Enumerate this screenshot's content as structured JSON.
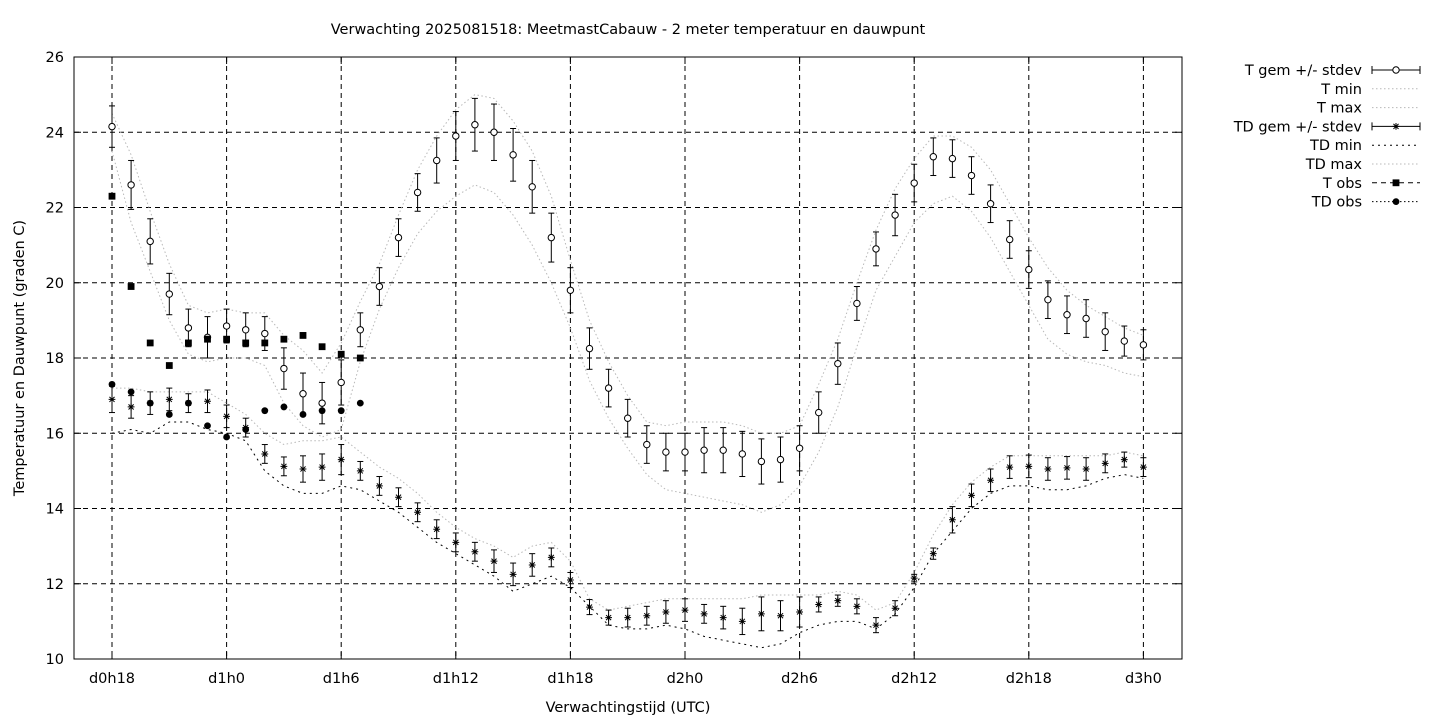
{
  "chart_data": {
    "type": "line",
    "title": "Verwachting 2025081518: MeetmastCabauw - 2 meter temperatuur en dauwpunt",
    "xlabel": "Verwachtingstijd (UTC)",
    "ylabel": "Temperatuur en Dauwpunt (graden C)",
    "xlim": [
      0,
      56
    ],
    "ylim": [
      10,
      26
    ],
    "x_ticks": [
      {
        "x": 0,
        "label": "d0h18"
      },
      {
        "x": 6,
        "label": "d1h0"
      },
      {
        "x": 12,
        "label": "d1h6"
      },
      {
        "x": 18,
        "label": "d1h12"
      },
      {
        "x": 24,
        "label": "d1h18"
      },
      {
        "x": 30,
        "label": "d2h0"
      },
      {
        "x": 36,
        "label": "d2h6"
      },
      {
        "x": 42,
        "label": "d2h12"
      },
      {
        "x": 48,
        "label": "d2h18"
      },
      {
        "x": 54,
        "label": "d3h0"
      }
    ],
    "y_ticks": [
      10,
      12,
      14,
      16,
      18,
      20,
      22,
      24,
      26
    ],
    "grid": true,
    "legend_position": "top-right, outside plot",
    "legend": [
      "T gem +/- stdev",
      "T min",
      "T max",
      "TD gem +/- stdev",
      "TD min",
      "TD max",
      "T obs",
      "TD obs"
    ],
    "series": [
      {
        "name": "T gem +/- stdev",
        "kind": "errorbar",
        "marker": "open-circle",
        "x": [
          0,
          1,
          2,
          3,
          4,
          5,
          6,
          7,
          8,
          9,
          10,
          11,
          12,
          13,
          14,
          15,
          16,
          17,
          18,
          19,
          20,
          21,
          22,
          23,
          24,
          25,
          26,
          27,
          28,
          29,
          30,
          31,
          32,
          33,
          34,
          35,
          36,
          37,
          38,
          39,
          40,
          41,
          42,
          43,
          44,
          45,
          46,
          47,
          48,
          49,
          50,
          51,
          52,
          53,
          54
        ],
        "y": [
          24.15,
          22.6,
          21.1,
          19.7,
          18.8,
          18.55,
          18.85,
          18.75,
          18.65,
          17.72,
          17.05,
          16.8,
          17.35,
          18.75,
          19.9,
          21.2,
          22.4,
          23.25,
          23.9,
          24.2,
          24.0,
          23.4,
          22.55,
          21.2,
          19.8,
          18.25,
          17.2,
          16.4,
          15.7,
          15.5,
          15.5,
          15.55,
          15.55,
          15.45,
          15.25,
          15.3,
          15.6,
          16.55,
          17.85,
          19.45,
          20.9,
          21.8,
          22.65,
          23.35,
          23.3,
          22.85,
          22.1,
          21.15,
          20.35,
          19.55,
          19.15,
          19.05,
          18.7,
          18.45,
          18.35
        ],
        "stdev": [
          0.55,
          0.65,
          0.6,
          0.55,
          0.5,
          0.55,
          0.45,
          0.45,
          0.45,
          0.55,
          0.55,
          0.55,
          0.6,
          0.45,
          0.5,
          0.5,
          0.5,
          0.6,
          0.65,
          0.7,
          0.75,
          0.7,
          0.7,
          0.65,
          0.6,
          0.55,
          0.5,
          0.5,
          0.5,
          0.5,
          0.5,
          0.6,
          0.6,
          0.6,
          0.6,
          0.6,
          0.6,
          0.55,
          0.55,
          0.45,
          0.45,
          0.55,
          0.5,
          0.5,
          0.5,
          0.5,
          0.5,
          0.5,
          0.5,
          0.5,
          0.5,
          0.5,
          0.5,
          0.4,
          0.4
        ]
      },
      {
        "name": "T min",
        "kind": "line",
        "x": [
          0,
          1,
          2,
          3,
          4,
          5,
          6,
          7,
          8,
          9,
          10,
          11,
          12,
          13,
          14,
          15,
          16,
          17,
          18,
          19,
          20,
          21,
          22,
          23,
          24,
          25,
          26,
          27,
          28,
          29,
          30,
          31,
          32,
          33,
          34,
          35,
          36,
          37,
          38,
          39,
          40,
          41,
          42,
          43,
          44,
          45,
          46,
          47,
          48,
          49,
          50,
          51,
          52,
          53,
          54
        ],
        "y": [
          23.5,
          21.6,
          20.3,
          19.0,
          18.1,
          17.9,
          18.0,
          18.0,
          17.8,
          16.8,
          16.2,
          15.9,
          16.1,
          17.9,
          19.3,
          20.4,
          21.3,
          21.9,
          22.3,
          22.6,
          22.4,
          21.8,
          21.0,
          20.0,
          18.8,
          17.4,
          16.4,
          15.6,
          14.9,
          14.5,
          14.4,
          14.3,
          14.2,
          14.1,
          13.9,
          14.1,
          14.6,
          15.5,
          16.7,
          18.3,
          19.8,
          20.7,
          21.6,
          22.1,
          22.3,
          21.9,
          21.2,
          20.3,
          19.4,
          18.5,
          18.1,
          17.9,
          17.8,
          17.6,
          17.5
        ]
      },
      {
        "name": "T max",
        "kind": "line",
        "x": [
          0,
          1,
          2,
          3,
          4,
          5,
          6,
          7,
          8,
          9,
          10,
          11,
          12,
          13,
          14,
          15,
          16,
          17,
          18,
          19,
          20,
          21,
          22,
          23,
          24,
          25,
          26,
          27,
          28,
          29,
          30,
          31,
          32,
          33,
          34,
          35,
          36,
          37,
          38,
          39,
          40,
          41,
          42,
          43,
          44,
          45,
          46,
          47,
          48,
          49,
          50,
          51,
          52,
          53,
          54
        ],
        "y": [
          24.5,
          23.4,
          21.9,
          20.5,
          19.4,
          19.2,
          19.3,
          19.2,
          19.2,
          18.6,
          18.2,
          17.6,
          18.4,
          19.5,
          20.5,
          21.8,
          23.0,
          23.9,
          24.6,
          25.0,
          24.9,
          24.3,
          23.5,
          22.3,
          20.6,
          19.0,
          17.9,
          17.0,
          16.3,
          16.2,
          16.3,
          16.3,
          16.3,
          16.2,
          16.0,
          16.0,
          16.2,
          17.3,
          18.5,
          20.0,
          21.4,
          22.5,
          23.3,
          23.9,
          23.9,
          23.6,
          23.0,
          22.1,
          21.2,
          20.4,
          19.8,
          19.4,
          19.1,
          18.8,
          18.6
        ]
      },
      {
        "name": "TD gem +/- stdev",
        "kind": "errorbar",
        "marker": "asterisk",
        "x": [
          0,
          1,
          2,
          3,
          4,
          5,
          6,
          7,
          8,
          9,
          10,
          11,
          12,
          13,
          14,
          15,
          16,
          17,
          18,
          19,
          20,
          21,
          22,
          23,
          24,
          25,
          26,
          27,
          28,
          29,
          30,
          31,
          32,
          33,
          34,
          35,
          36,
          37,
          38,
          39,
          40,
          41,
          42,
          43,
          44,
          45,
          46,
          47,
          48,
          49,
          50,
          51,
          52,
          53,
          54
        ],
        "y": [
          16.9,
          16.7,
          16.8,
          16.9,
          16.8,
          16.85,
          16.45,
          16.15,
          15.45,
          15.12,
          15.05,
          15.1,
          15.3,
          15.0,
          14.6,
          14.3,
          13.9,
          13.45,
          13.1,
          12.85,
          12.6,
          12.25,
          12.5,
          12.7,
          12.1,
          11.38,
          11.1,
          11.1,
          11.15,
          11.25,
          11.3,
          11.2,
          11.1,
          11.0,
          11.2,
          11.15,
          11.25,
          11.45,
          11.55,
          11.4,
          10.9,
          11.35,
          12.15,
          12.8,
          13.7,
          14.35,
          14.75,
          15.1,
          15.12,
          15.05,
          15.08,
          15.05,
          15.2,
          15.3,
          15.1
        ],
        "stdev": [
          0.35,
          0.3,
          0.3,
          0.3,
          0.25,
          0.3,
          0.3,
          0.25,
          0.25,
          0.25,
          0.35,
          0.35,
          0.4,
          0.25,
          0.25,
          0.25,
          0.25,
          0.25,
          0.25,
          0.25,
          0.3,
          0.3,
          0.3,
          0.25,
          0.2,
          0.2,
          0.2,
          0.25,
          0.25,
          0.3,
          0.3,
          0.25,
          0.3,
          0.35,
          0.45,
          0.4,
          0.4,
          0.2,
          0.15,
          0.2,
          0.2,
          0.2,
          0.1,
          0.15,
          0.35,
          0.3,
          0.3,
          0.3,
          0.3,
          0.3,
          0.3,
          0.3,
          0.25,
          0.2,
          0.25
        ]
      },
      {
        "name": "TD min",
        "kind": "line",
        "x": [
          0,
          1,
          2,
          3,
          4,
          5,
          6,
          7,
          8,
          9,
          10,
          11,
          12,
          13,
          14,
          15,
          16,
          17,
          18,
          19,
          20,
          21,
          22,
          23,
          24,
          25,
          26,
          27,
          28,
          29,
          30,
          31,
          32,
          33,
          34,
          35,
          36,
          37,
          38,
          39,
          40,
          41,
          42,
          43,
          44,
          45,
          46,
          47,
          48,
          49,
          50,
          51,
          52,
          53,
          54
        ],
        "y": [
          16.0,
          16.1,
          16.0,
          16.3,
          16.3,
          16.1,
          16.0,
          15.8,
          15.0,
          14.6,
          14.4,
          14.4,
          14.6,
          14.5,
          14.2,
          13.9,
          13.5,
          13.1,
          12.8,
          12.5,
          12.2,
          11.8,
          12.0,
          12.2,
          11.9,
          11.4,
          10.9,
          10.8,
          10.8,
          10.9,
          10.8,
          10.6,
          10.5,
          10.4,
          10.3,
          10.4,
          10.7,
          10.9,
          11.0,
          11.0,
          10.8,
          11.2,
          11.9,
          12.8,
          13.4,
          14.0,
          14.4,
          14.6,
          14.6,
          14.5,
          14.5,
          14.6,
          14.8,
          14.9,
          14.8
        ]
      },
      {
        "name": "TD max",
        "kind": "line",
        "x": [
          0,
          1,
          2,
          3,
          4,
          5,
          6,
          7,
          8,
          9,
          10,
          11,
          12,
          13,
          14,
          15,
          16,
          17,
          18,
          19,
          20,
          21,
          22,
          23,
          24,
          25,
          26,
          27,
          28,
          29,
          30,
          31,
          32,
          33,
          34,
          35,
          36,
          37,
          38,
          39,
          40,
          41,
          42,
          43,
          44,
          45,
          46,
          47,
          48,
          49,
          50,
          51,
          52,
          53,
          54
        ],
        "y": [
          17.2,
          17.2,
          17.1,
          17.1,
          17.1,
          17.1,
          16.8,
          16.5,
          16.0,
          15.7,
          15.8,
          15.8,
          15.9,
          15.5,
          15.1,
          14.8,
          14.4,
          13.9,
          13.5,
          13.2,
          13.0,
          12.7,
          13.0,
          13.1,
          12.6,
          11.6,
          11.3,
          11.4,
          11.5,
          11.6,
          11.6,
          11.6,
          11.6,
          11.6,
          11.7,
          11.7,
          11.7,
          11.7,
          11.8,
          11.7,
          11.3,
          11.5,
          12.3,
          13.3,
          14.1,
          14.7,
          15.1,
          15.4,
          15.4,
          15.4,
          15.4,
          15.4,
          15.4,
          15.5,
          15.4
        ]
      },
      {
        "name": "T obs",
        "kind": "points",
        "marker": "filled-square",
        "x": [
          0,
          1,
          2,
          3,
          4,
          5,
          6,
          7,
          8,
          9,
          10,
          11,
          12,
          13
        ],
        "y": [
          22.3,
          19.9,
          18.4,
          17.8,
          18.4,
          18.5,
          18.5,
          18.4,
          18.4,
          18.5,
          18.6,
          18.3,
          18.1,
          18.0
        ]
      },
      {
        "name": "TD obs",
        "kind": "points",
        "marker": "filled-circle",
        "x": [
          0,
          1,
          2,
          3,
          4,
          5,
          6,
          7,
          8,
          9,
          10,
          11,
          12,
          13
        ],
        "y": [
          17.3,
          17.1,
          16.8,
          16.5,
          16.8,
          16.2,
          15.9,
          16.1,
          16.6,
          16.7,
          16.5,
          16.6,
          16.6,
          16.8
        ]
      }
    ]
  }
}
